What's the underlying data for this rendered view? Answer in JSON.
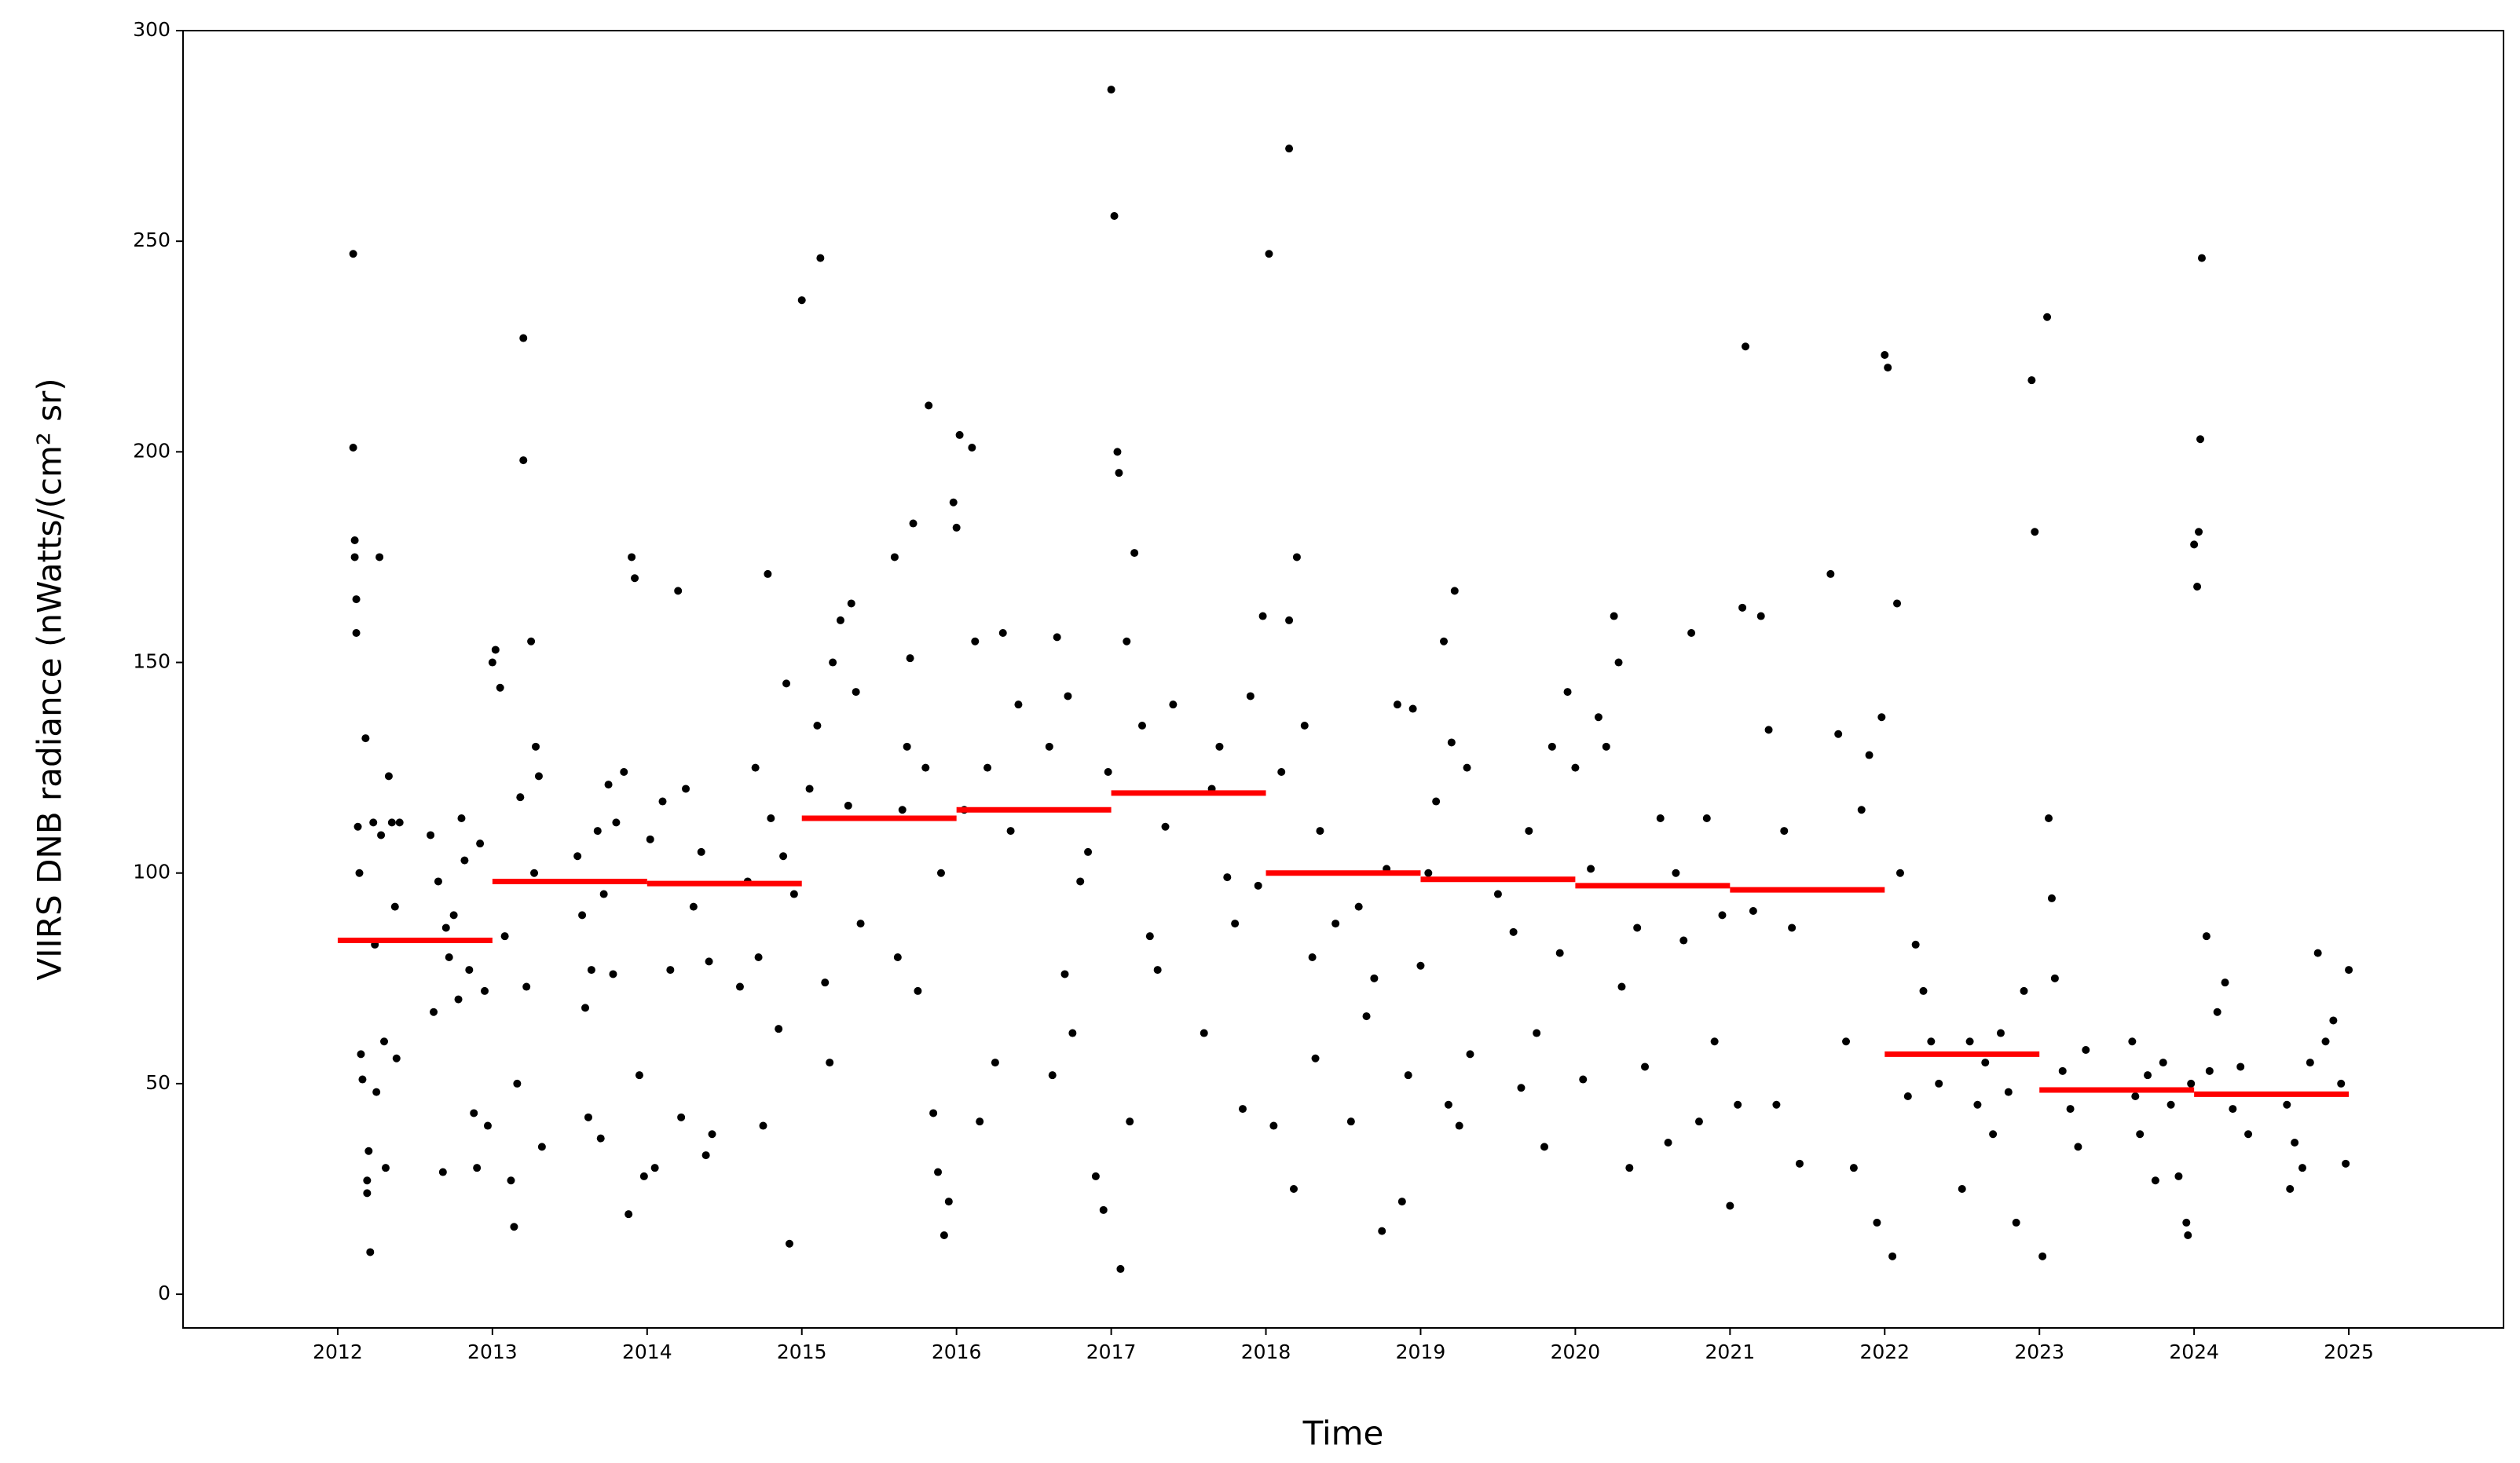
{
  "chart_data": {
    "type": "scatter",
    "x_label": "Time",
    "y_label": "VIIRS DNB radiance (nWatts/(cm² sr)",
    "xlim": [
      2011,
      2026
    ],
    "ylim": [
      -8,
      300
    ],
    "xticks": [
      2012,
      2013,
      2014,
      2015,
      2016,
      2017,
      2018,
      2019,
      2020,
      2021,
      2022,
      2023,
      2024,
      2025
    ],
    "yticks": [
      0,
      50,
      100,
      150,
      200,
      250,
      300
    ],
    "series": [
      {
        "color": "#000000",
        "x": [
          2012.1,
          2012.1,
          2012.11,
          2012.11,
          2012.12,
          2012.12,
          2012.13,
          2012.14,
          2012.15,
          2012.16,
          2012.18,
          2012.19,
          2012.19,
          2012.2,
          2012.21,
          2012.23,
          2012.24,
          2012.25,
          2012.27,
          2012.28,
          2012.3,
          2012.31,
          2012.33,
          2012.35,
          2012.37,
          2012.38,
          2012.4,
          2012.6,
          2012.62,
          2012.65,
          2012.68,
          2012.7,
          2012.72,
          2012.75,
          2012.78,
          2012.8,
          2012.82,
          2012.85,
          2012.88,
          2012.9,
          2012.92,
          2012.95,
          2012.97,
          2013.0,
          2013.02,
          2013.05,
          2013.08,
          2013.12,
          2013.14,
          2013.16,
          2013.18,
          2013.2,
          2013.2,
          2013.22,
          2013.25,
          2013.27,
          2013.28,
          2013.3,
          2013.32,
          2013.55,
          2013.58,
          2013.6,
          2013.62,
          2013.64,
          2013.68,
          2013.7,
          2013.72,
          2013.75,
          2013.78,
          2013.8,
          2013.85,
          2013.88,
          2013.9,
          2013.92,
          2013.95,
          2013.98,
          2014.02,
          2014.05,
          2014.1,
          2014.15,
          2014.2,
          2014.22,
          2014.25,
          2014.3,
          2014.35,
          2014.38,
          2014.4,
          2014.42,
          2014.6,
          2014.65,
          2014.7,
          2014.72,
          2014.75,
          2014.78,
          2014.8,
          2014.85,
          2014.88,
          2014.9,
          2014.92,
          2014.95,
          2015.0,
          2015.05,
          2015.1,
          2015.12,
          2015.15,
          2015.18,
          2015.2,
          2015.25,
          2015.3,
          2015.32,
          2015.35,
          2015.38,
          2015.6,
          2015.62,
          2015.65,
          2015.68,
          2015.7,
          2015.72,
          2015.75,
          2015.8,
          2015.82,
          2015.85,
          2015.88,
          2015.9,
          2015.92,
          2015.95,
          2015.98,
          2016.0,
          2016.02,
          2016.05,
          2016.1,
          2016.12,
          2016.15,
          2016.2,
          2016.25,
          2016.3,
          2016.35,
          2016.4,
          2016.6,
          2016.62,
          2016.65,
          2016.7,
          2016.72,
          2016.75,
          2016.8,
          2016.85,
          2016.9,
          2016.95,
          2016.98,
          2017.0,
          2017.02,
          2017.04,
          2017.05,
          2017.06,
          2017.1,
          2017.12,
          2017.15,
          2017.2,
          2017.25,
          2017.3,
          2017.35,
          2017.4,
          2017.6,
          2017.65,
          2017.7,
          2017.75,
          2017.8,
          2017.85,
          2017.9,
          2017.95,
          2017.98,
          2018.02,
          2018.05,
          2018.1,
          2018.15,
          2018.15,
          2018.18,
          2018.2,
          2018.25,
          2018.3,
          2018.32,
          2018.35,
          2018.45,
          2018.55,
          2018.6,
          2018.65,
          2018.7,
          2018.75,
          2018.78,
          2018.85,
          2018.88,
          2018.92,
          2018.95,
          2019.0,
          2019.05,
          2019.1,
          2019.15,
          2019.18,
          2019.2,
          2019.22,
          2019.25,
          2019.3,
          2019.32,
          2019.5,
          2019.6,
          2019.65,
          2019.7,
          2019.75,
          2019.8,
          2019.85,
          2019.9,
          2019.95,
          2020.0,
          2020.05,
          2020.1,
          2020.15,
          2020.2,
          2020.25,
          2020.28,
          2020.3,
          2020.35,
          2020.4,
          2020.45,
          2020.55,
          2020.6,
          2020.65,
          2020.7,
          2020.75,
          2020.8,
          2020.85,
          2020.9,
          2020.95,
          2021.0,
          2021.05,
          2021.08,
          2021.1,
          2021.15,
          2021.2,
          2021.25,
          2021.3,
          2021.35,
          2021.4,
          2021.45,
          2021.65,
          2021.7,
          2021.75,
          2021.8,
          2021.85,
          2021.9,
          2021.95,
          2021.98,
          2022.0,
          2022.02,
          2022.05,
          2022.08,
          2022.1,
          2022.15,
          2022.2,
          2022.25,
          2022.3,
          2022.35,
          2022.5,
          2022.55,
          2022.6,
          2022.65,
          2022.7,
          2022.75,
          2022.8,
          2022.85,
          2022.9,
          2022.95,
          2022.97,
          2023.02,
          2023.05,
          2023.06,
          2023.08,
          2023.1,
          2023.15,
          2023.2,
          2023.25,
          2023.3,
          2023.6,
          2023.62,
          2023.65,
          2023.7,
          2023.75,
          2023.8,
          2023.85,
          2023.9,
          2023.95,
          2023.96,
          2023.98,
          2024.0,
          2024.02,
          2024.03,
          2024.04,
          2024.05,
          2024.08,
          2024.1,
          2024.15,
          2024.2,
          2024.25,
          2024.3,
          2024.35,
          2024.6,
          2024.62,
          2024.65,
          2024.7,
          2024.75,
          2024.8,
          2024.85,
          2024.9,
          2024.95,
          2024.98,
          2025.0
        ],
        "values": [
          247,
          201,
          179,
          175,
          165,
          157,
          111,
          100,
          57,
          51,
          132,
          27,
          24,
          34,
          10,
          112,
          83,
          48,
          175,
          109,
          60,
          30,
          123,
          112,
          92,
          56,
          112,
          109,
          67,
          98,
          29,
          87,
          80,
          90,
          70,
          113,
          103,
          77,
          43,
          30,
          107,
          72,
          40,
          150,
          153,
          144,
          85,
          27,
          16,
          50,
          118,
          227,
          198,
          73,
          155,
          100,
          130,
          123,
          35,
          104,
          90,
          68,
          42,
          77,
          110,
          37,
          95,
          121,
          76,
          112,
          124,
          19,
          175,
          170,
          52,
          28,
          108,
          30,
          117,
          77,
          167,
          42,
          120,
          92,
          105,
          33,
          79,
          38,
          73,
          98,
          125,
          80,
          40,
          171,
          113,
          63,
          104,
          145,
          12,
          95,
          236,
          120,
          135,
          246,
          74,
          55,
          150,
          160,
          116,
          164,
          143,
          88,
          175,
          80,
          115,
          130,
          151,
          183,
          72,
          125,
          211,
          43,
          29,
          100,
          14,
          22,
          188,
          182,
          204,
          115,
          201,
          155,
          41,
          125,
          55,
          157,
          110,
          140,
          130,
          52,
          156,
          76,
          142,
          62,
          98,
          105,
          28,
          20,
          124,
          286,
          256,
          200,
          195,
          6,
          155,
          41,
          176,
          135,
          85,
          77,
          111,
          140,
          62,
          120,
          130,
          99,
          88,
          44,
          142,
          97,
          161,
          247,
          40,
          124,
          272,
          160,
          25,
          175,
          135,
          80,
          56,
          110,
          88,
          41,
          92,
          66,
          75,
          15,
          101,
          140,
          22,
          52,
          139,
          78,
          100,
          117,
          155,
          45,
          131,
          167,
          40,
          125,
          57,
          95,
          86,
          49,
          110,
          62,
          35,
          130,
          81,
          143,
          125,
          51,
          101,
          137,
          130,
          161,
          150,
          73,
          30,
          87,
          54,
          113,
          36,
          100,
          84,
          157,
          41,
          113,
          60,
          90,
          21,
          45,
          163,
          225,
          91,
          161,
          134,
          45,
          110,
          87,
          31,
          171,
          133,
          60,
          30,
          115,
          128,
          17,
          137,
          223,
          220,
          9,
          164,
          100,
          47,
          83,
          72,
          60,
          50,
          25,
          60,
          45,
          55,
          38,
          62,
          48,
          17,
          72,
          217,
          181,
          9,
          232,
          113,
          94,
          75,
          53,
          44,
          35,
          58,
          60,
          47,
          38,
          52,
          27,
          55,
          45,
          28,
          17,
          14,
          50,
          178,
          168,
          181,
          203,
          246,
          85,
          53,
          67,
          74,
          44,
          54,
          38,
          45,
          25,
          36,
          30,
          55,
          81,
          60,
          65,
          50,
          31,
          77
        ]
      },
      {
        "color": "#ff0000",
        "bins": [
          2012,
          2013,
          2014,
          2015,
          2016,
          2017,
          2018,
          2019,
          2020,
          2021,
          2022,
          2023,
          2024,
          2025
        ],
        "values": [
          84,
          98,
          97.5,
          113,
          115,
          119,
          100,
          98.5,
          97,
          96,
          57,
          48.5,
          47.5
        ]
      }
    ]
  }
}
